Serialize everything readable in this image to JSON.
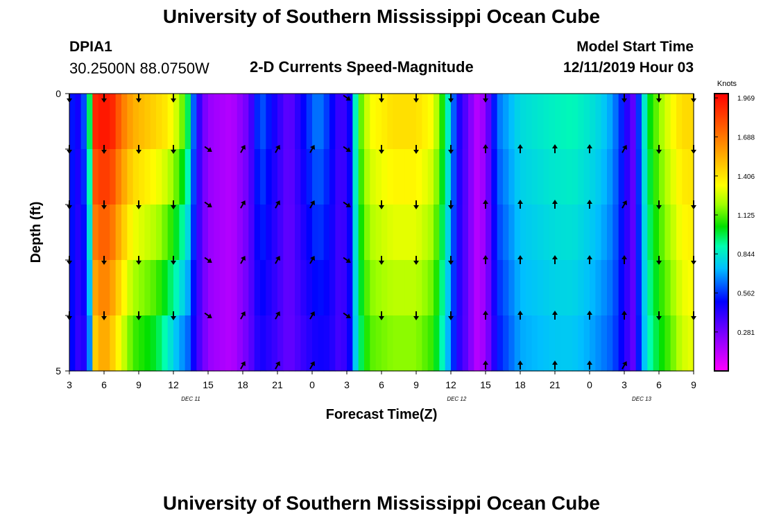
{
  "header": {
    "title": "University of Southern Mississippi Ocean Cube",
    "station_id": "DPIA1",
    "station_coords": "30.2500N 88.0750W",
    "chart_heading": "2-D Currents Speed-Magnitude",
    "model_label": "Model Start Time",
    "model_time": "12/11/2019 Hour 03"
  },
  "footer": {
    "title": "University of Southern Mississippi Ocean Cube"
  },
  "chart_data": {
    "type": "heatmap",
    "title": "2-D Currents Speed-Magnitude",
    "xlabel": "Forecast Time(Z)",
    "ylabel": "Depth (ft)",
    "y_ticks": [
      "0",
      "5"
    ],
    "ylim": [
      0,
      5
    ],
    "x_ticks": [
      "3",
      "6",
      "9",
      "12",
      "15",
      "18",
      "21",
      "0",
      "3",
      "6",
      "9",
      "12",
      "15",
      "18",
      "21",
      "0",
      "3",
      "6",
      "9"
    ],
    "x_hours": [
      3,
      6,
      9,
      12,
      15,
      18,
      21,
      24,
      27,
      30,
      33,
      36,
      39,
      42,
      45,
      48,
      51,
      54,
      57
    ],
    "date_labels": [
      {
        "text": "DEC 11",
        "hour": 13.5
      },
      {
        "text": "DEC 12",
        "hour": 36.5
      },
      {
        "text": "DEC 13",
        "hour": 52.5
      }
    ],
    "colorbar": {
      "unit": "Knots",
      "min": 0,
      "max": 2.0,
      "ticks": [
        "1.969",
        "1.688",
        "1.406",
        "1.125",
        "0.844",
        "0.562",
        "0.281"
      ],
      "tick_values": [
        1.969,
        1.688,
        1.406,
        1.125,
        0.844,
        0.562,
        0.281
      ]
    },
    "speed_profile": {
      "hours": [
        3,
        4,
        4.7,
        5.2,
        6,
        6.8,
        7.5,
        8.5,
        9.5,
        10.5,
        11.5,
        12.5,
        13.2,
        13.8,
        14.5,
        15.3,
        17,
        18.5,
        19.5,
        20.5,
        22,
        23.5,
        24.5,
        25.5,
        26.5,
        27.3,
        28,
        29,
        31,
        33,
        34.5,
        35.5,
        36.5,
        37.5,
        38.2,
        39,
        40,
        42,
        45,
        46.5,
        48,
        49,
        50,
        51,
        51.7,
        52.3,
        53,
        54,
        55,
        56,
        57
      ],
      "surface": [
        0.55,
        0.45,
        0.9,
        1.95,
        2.0,
        1.95,
        1.75,
        1.6,
        1.55,
        1.5,
        1.45,
        1.3,
        1.05,
        0.6,
        0.3,
        0.2,
        0.15,
        0.3,
        0.65,
        0.5,
        0.3,
        0.55,
        0.7,
        0.55,
        0.35,
        0.5,
        1.1,
        1.35,
        1.45,
        1.45,
        1.35,
        1.0,
        0.5,
        0.3,
        0.15,
        0.22,
        0.65,
        0.82,
        0.88,
        0.9,
        0.85,
        0.8,
        0.7,
        0.5,
        0.3,
        0.6,
        1.0,
        1.2,
        1.35,
        1.45,
        1.45
      ],
      "bottom": [
        0.55,
        0.35,
        0.55,
        1.4,
        1.55,
        1.4,
        1.25,
        1.05,
        1.0,
        0.95,
        0.8,
        0.65,
        0.6,
        0.45,
        0.3,
        0.2,
        0.15,
        0.3,
        0.45,
        0.4,
        0.3,
        0.4,
        0.45,
        0.45,
        0.35,
        0.5,
        0.9,
        1.1,
        1.15,
        1.15,
        1.05,
        0.8,
        0.45,
        0.3,
        0.15,
        0.2,
        0.5,
        0.7,
        0.75,
        0.75,
        0.7,
        0.65,
        0.6,
        0.45,
        0.3,
        0.55,
        0.85,
        1.0,
        1.1,
        1.25,
        1.3
      ]
    },
    "direction_arrows": {
      "depths_ft": [
        0,
        1,
        2,
        3,
        4,
        5
      ],
      "hours": [
        3,
        6,
        9,
        12,
        15,
        18,
        21,
        24,
        27,
        30,
        33,
        36,
        39,
        42,
        45,
        48,
        51,
        54,
        57
      ],
      "columns": [
        [
          "S",
          "S",
          "S",
          "S",
          "S",
          ""
        ],
        [
          "S",
          "S",
          "S",
          "S",
          "S",
          ""
        ],
        [
          "S",
          "S",
          "S",
          "S",
          "S",
          ""
        ],
        [
          "S",
          "S",
          "S",
          "S",
          "S",
          ""
        ],
        [
          "",
          "SE",
          "SE",
          "SE",
          "SE",
          ""
        ],
        [
          "",
          "NE",
          "NE",
          "NE",
          "NE",
          "NE"
        ],
        [
          "",
          "NE",
          "NE",
          "NE",
          "NE",
          "NE"
        ],
        [
          "",
          "NE",
          "NE",
          "NE",
          "NE",
          "NE"
        ],
        [
          "SE",
          "SE",
          "SE",
          "SE",
          "SE",
          ""
        ],
        [
          "S",
          "S",
          "S",
          "S",
          "S",
          ""
        ],
        [
          "S",
          "S",
          "S",
          "S",
          "S",
          ""
        ],
        [
          "S",
          "S",
          "S",
          "S",
          "S",
          ""
        ],
        [
          "S",
          "N",
          "N",
          "N",
          "N",
          "N"
        ],
        [
          "",
          "N",
          "N",
          "N",
          "N",
          "N"
        ],
        [
          "",
          "N",
          "N",
          "N",
          "N",
          "N"
        ],
        [
          "",
          "N",
          "N",
          "N",
          "N",
          "N"
        ],
        [
          "S",
          "NE",
          "NE",
          "N",
          "N",
          "NE"
        ],
        [
          "S",
          "S",
          "S",
          "S",
          "S",
          ""
        ],
        [
          "S",
          "S",
          "S",
          "S",
          "S",
          ""
        ]
      ]
    }
  }
}
